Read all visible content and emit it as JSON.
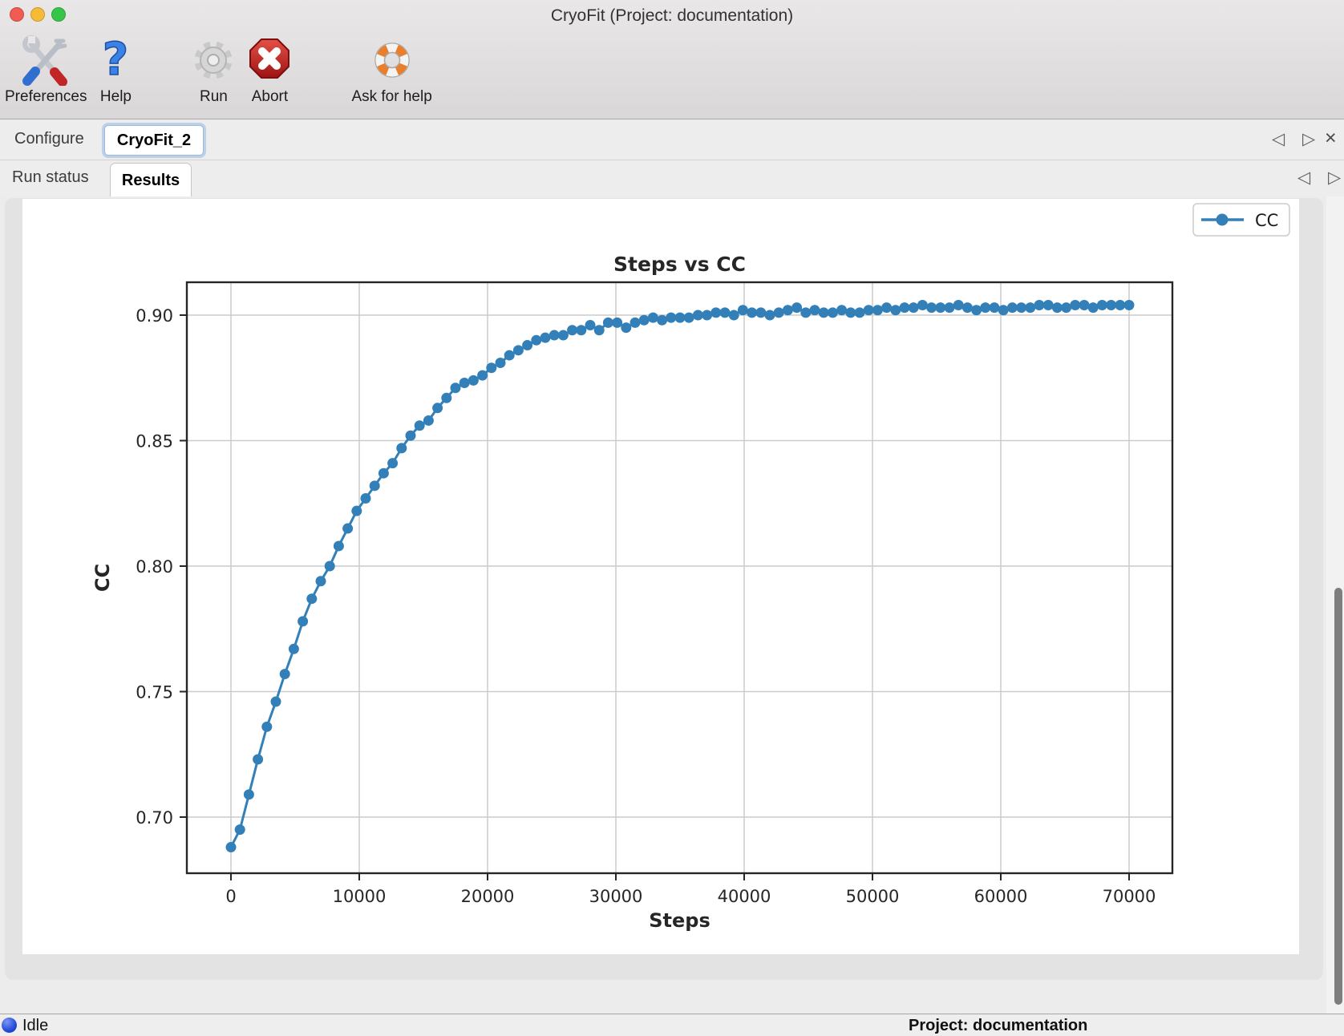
{
  "window": {
    "title": "CryoFit (Project: documentation)"
  },
  "toolbar": {
    "buttons": [
      {
        "label": "Preferences",
        "icon": "tools-icon"
      },
      {
        "label": "Help",
        "icon": "question-mark-icon"
      },
      {
        "label": "Run",
        "icon": "gear-icon",
        "state": "disabled"
      },
      {
        "label": "Abort",
        "icon": "abort-octagon-icon"
      },
      {
        "label": "Ask for help",
        "icon": "lifebuoy-icon"
      }
    ]
  },
  "nav_glyphs": {
    "prev": "◁",
    "next": "▷",
    "close": "×"
  },
  "tabs_primary": {
    "items": [
      {
        "label": "Configure",
        "active": false
      },
      {
        "label": "CryoFit_2",
        "active": true
      }
    ]
  },
  "tabs_secondary": {
    "items": [
      {
        "label": "Run status",
        "active": false
      },
      {
        "label": "Results",
        "active": true
      }
    ]
  },
  "status_bar": {
    "status": "Idle",
    "project": "Project: documentation"
  },
  "colors": {
    "series_blue": "#3380b8",
    "grid": "#cccccc",
    "axis": "#262626",
    "abort_red": "#c32222",
    "lifebuoy_orange": "#e87f2e",
    "help_blue": "#3b82e8",
    "status_sphere_blue": "#2a51dd"
  },
  "chart_data": {
    "type": "line",
    "title": "Steps vs CC",
    "xlabel": "Steps",
    "ylabel": "CC",
    "grid": true,
    "legend": [
      {
        "name": "CC",
        "color": "#3380b8",
        "position": "top-right"
      }
    ],
    "xlim": [
      -3400,
      73400
    ],
    "ylim": [
      0.678,
      0.913
    ],
    "x_ticks": [
      0,
      10000,
      20000,
      30000,
      40000,
      50000,
      60000,
      70000
    ],
    "x_tick_labels": [
      "0",
      "10000",
      "20000",
      "30000",
      "40000",
      "50000",
      "60000",
      "70000"
    ],
    "y_ticks": [
      0.7,
      0.75,
      0.8,
      0.85,
      0.9
    ],
    "y_tick_labels": [
      "0.70",
      "0.75",
      "0.80",
      "0.85",
      "0.90"
    ],
    "series": [
      {
        "name": "CC",
        "color": "#3380b8",
        "marker": "circle",
        "x_step": 700,
        "x": [
          0,
          700,
          1400,
          2100,
          2800,
          3500,
          4200,
          4900,
          5600,
          6300,
          7000,
          7700,
          8400,
          9100,
          9800,
          10500,
          11200,
          11900,
          12600,
          13300,
          14000,
          14700,
          15400,
          16100,
          16800,
          17500,
          18200,
          18900,
          19600,
          20300,
          21000,
          21700,
          22400,
          23100,
          23800,
          24500,
          25200,
          25900,
          26600,
          27300,
          28000,
          28700,
          29400,
          30100,
          30800,
          31500,
          32200,
          32900,
          33600,
          34300,
          35000,
          35700,
          36400,
          37100,
          37800,
          38500,
          39200,
          39900,
          40600,
          41300,
          42000,
          42700,
          43400,
          44100,
          44800,
          45500,
          46200,
          46900,
          47600,
          48300,
          49000,
          49700,
          50400,
          51100,
          51800,
          52500,
          53200,
          53900,
          54600,
          55300,
          56000,
          56700,
          57400,
          58100,
          58800,
          59500,
          60200,
          60900,
          61600,
          62300,
          63000,
          63700,
          64400,
          65100,
          65800,
          66500,
          67200,
          67900,
          68600,
          69300,
          70000
        ],
        "y": [
          0.688,
          0.695,
          0.709,
          0.723,
          0.736,
          0.746,
          0.757,
          0.767,
          0.778,
          0.787,
          0.794,
          0.8,
          0.808,
          0.815,
          0.822,
          0.827,
          0.832,
          0.837,
          0.841,
          0.847,
          0.852,
          0.856,
          0.858,
          0.863,
          0.867,
          0.871,
          0.873,
          0.874,
          0.876,
          0.879,
          0.881,
          0.884,
          0.886,
          0.888,
          0.89,
          0.891,
          0.892,
          0.892,
          0.894,
          0.894,
          0.896,
          0.894,
          0.897,
          0.897,
          0.895,
          0.897,
          0.898,
          0.899,
          0.898,
          0.899,
          0.899,
          0.899,
          0.9,
          0.9,
          0.901,
          0.901,
          0.9,
          0.902,
          0.901,
          0.901,
          0.9,
          0.901,
          0.902,
          0.903,
          0.901,
          0.902,
          0.901,
          0.901,
          0.902,
          0.901,
          0.901,
          0.902,
          0.902,
          0.903,
          0.902,
          0.903,
          0.903,
          0.904,
          0.903,
          0.903,
          0.903,
          0.904,
          0.903,
          0.902,
          0.903,
          0.903,
          0.902,
          0.903,
          0.903,
          0.903,
          0.904,
          0.904,
          0.903,
          0.903,
          0.904,
          0.904,
          0.903,
          0.904,
          0.904,
          0.904,
          0.904
        ]
      }
    ]
  }
}
